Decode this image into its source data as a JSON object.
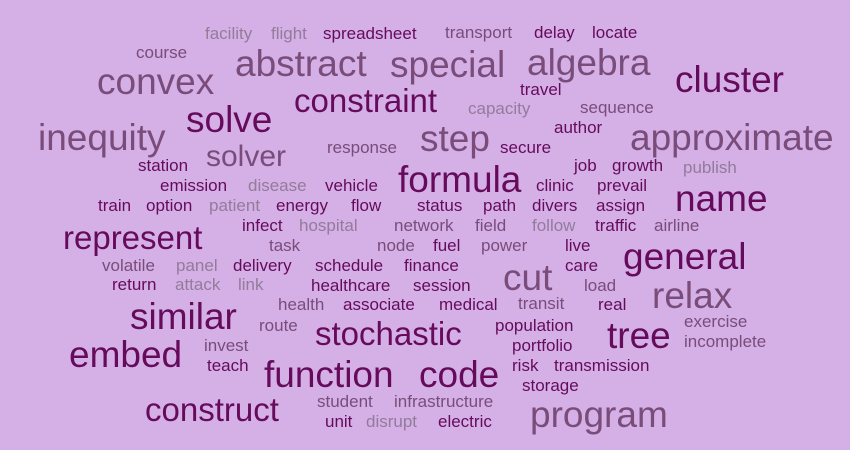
{
  "words": {
    "facility": "facility",
    "flight": "flight",
    "spreadsheet": "spreadsheet",
    "transport": "transport",
    "delay": "delay",
    "locate": "locate",
    "course": "course",
    "abstract": "abstract",
    "special": "special",
    "algebra": "algebra",
    "convex": "convex",
    "cluster": "cluster",
    "travel": "travel",
    "constraint": "constraint",
    "capacity": "capacity",
    "sequence": "sequence",
    "solve": "solve",
    "author": "author",
    "inequity": "inequity",
    "step": "step",
    "approximate": "approximate",
    "response": "response",
    "secure": "secure",
    "solver": "solver",
    "station": "station",
    "job": "job",
    "growth": "growth",
    "publish": "publish",
    "formula": "formula",
    "emission": "emission",
    "disease": "disease",
    "vehicle": "vehicle",
    "clinic": "clinic",
    "prevail": "prevail",
    "name": "name",
    "train": "train",
    "option": "option",
    "patient": "patient",
    "energy": "energy",
    "flow": "flow",
    "status": "status",
    "path": "path",
    "divers": "divers",
    "assign": "assign",
    "infect": "infect",
    "hospital": "hospital",
    "network": "network",
    "field": "field",
    "follow": "follow",
    "traffic": "traffic",
    "airline": "airline",
    "represent": "represent",
    "task": "task",
    "node": "node",
    "fuel": "fuel",
    "power": "power",
    "live": "live",
    "general": "general",
    "volatile": "volatile",
    "panel": "panel",
    "delivery": "delivery",
    "schedule": "schedule",
    "finance": "finance",
    "cut": "cut",
    "care": "care",
    "return": "return",
    "attack": "attack",
    "link": "link",
    "healthcare": "healthcare",
    "session": "session",
    "load": "load",
    "relax": "relax",
    "health": "health",
    "associate": "associate",
    "medical": "medical",
    "transit": "transit",
    "real": "real",
    "similar": "similar",
    "route": "route",
    "exercise": "exercise",
    "stochastic": "stochastic",
    "population": "population",
    "tree": "tree",
    "invest": "invest",
    "incomplete": "incomplete",
    "embed": "embed",
    "portfolio": "portfolio",
    "teach": "teach",
    "risk": "risk",
    "transmission": "transmission",
    "function": "function",
    "code": "code",
    "storage": "storage",
    "student": "student",
    "infrastructure": "infrastructure",
    "construct": "construct",
    "program": "program",
    "unit": "unit",
    "disrupt": "disrupt",
    "electric": "electric"
  },
  "colors": {
    "background": "#d4b0e6",
    "dark": "#660a5c",
    "medium": "#7a4c7a",
    "light": "#937b9a"
  }
}
